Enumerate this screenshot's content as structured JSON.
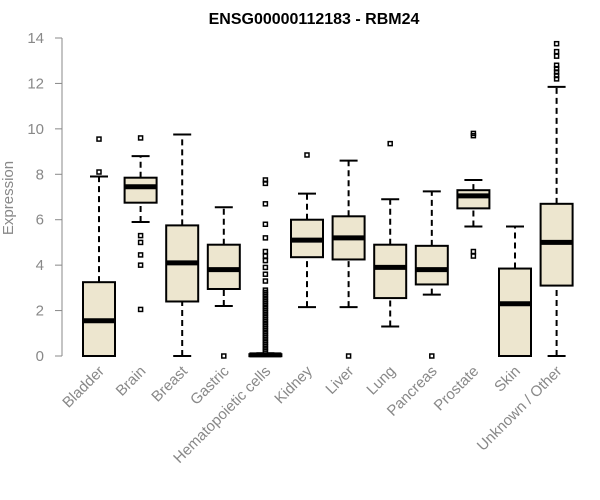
{
  "chart_data": {
    "type": "boxplot",
    "title": "ENSG00000112183 - RBM24",
    "xlabel": "",
    "ylabel": "Expression",
    "ylim": [
      0,
      14
    ],
    "yticks": [
      0,
      2,
      4,
      6,
      8,
      10,
      12,
      14
    ],
    "colors": {
      "box_fill": "#ede6cf",
      "stroke": "#000000",
      "axis": "#888888"
    },
    "categories": [
      "Bladder",
      "Brain",
      "Breast",
      "Gastric",
      "Hematopoietic cells",
      "Kidney",
      "Liver",
      "Lung",
      "Pancreas",
      "Prostate",
      "Skin",
      "Unknown / Other"
    ],
    "boxes": [
      {
        "name": "Bladder",
        "whisker_low": 0,
        "q1": 0,
        "median": 1.55,
        "q3": 3.25,
        "whisker_high": 7.9,
        "outliers": [
          8.1,
          9.55
        ]
      },
      {
        "name": "Brain",
        "whisker_low": 5.9,
        "q1": 6.75,
        "median": 7.45,
        "q3": 7.85,
        "whisker_high": 8.8,
        "outliers": [
          2.05,
          4.0,
          4.45,
          5.0,
          5.3,
          9.6
        ]
      },
      {
        "name": "Breast",
        "whisker_low": 0,
        "q1": 2.4,
        "median": 4.1,
        "q3": 5.75,
        "whisker_high": 9.75,
        "outliers": []
      },
      {
        "name": "Gastric",
        "whisker_low": 2.2,
        "q1": 2.95,
        "median": 3.8,
        "q3": 4.9,
        "whisker_high": 6.55,
        "outliers": [
          0.0
        ]
      },
      {
        "name": "Hematopoietic cells",
        "whisker_low": 0,
        "q1": 0,
        "median": 0.05,
        "q3": 0.08,
        "whisker_high": 0.12,
        "outliers": [
          0.2,
          0.3,
          0.4,
          0.5,
          0.6,
          0.7,
          0.8,
          0.9,
          1.0,
          1.1,
          1.2,
          1.3,
          1.4,
          1.5,
          1.6,
          1.7,
          1.8,
          1.9,
          2.0,
          2.1,
          2.2,
          2.3,
          2.4,
          2.5,
          2.6,
          2.7,
          2.8,
          2.9,
          3.3,
          3.6,
          3.9,
          4.2,
          4.4,
          4.6,
          5.2,
          5.8,
          6.7,
          7.6,
          7.75
        ]
      },
      {
        "name": "Kidney",
        "whisker_low": 2.15,
        "q1": 4.35,
        "median": 5.1,
        "q3": 6.0,
        "whisker_high": 7.15,
        "outliers": [
          8.85
        ]
      },
      {
        "name": "Liver",
        "whisker_low": 2.15,
        "q1": 4.25,
        "median": 5.2,
        "q3": 6.15,
        "whisker_high": 8.6,
        "outliers": [
          0.0
        ]
      },
      {
        "name": "Lung",
        "whisker_low": 1.3,
        "q1": 2.55,
        "median": 3.9,
        "q3": 4.9,
        "whisker_high": 6.9,
        "outliers": [
          9.35
        ]
      },
      {
        "name": "Pancreas",
        "whisker_low": 2.7,
        "q1": 3.15,
        "median": 3.8,
        "q3": 4.85,
        "whisker_high": 7.25,
        "outliers": [
          0.0
        ]
      },
      {
        "name": "Prostate",
        "whisker_low": 5.7,
        "q1": 6.5,
        "median": 7.05,
        "q3": 7.3,
        "whisker_high": 7.75,
        "outliers": [
          4.4,
          4.6,
          9.7,
          9.8
        ]
      },
      {
        "name": "Skin",
        "whisker_low": 0,
        "q1": 0,
        "median": 2.3,
        "q3": 3.85,
        "whisker_high": 5.7,
        "outliers": []
      },
      {
        "name": "Unknown / Other",
        "whisker_low": 0,
        "q1": 3.1,
        "median": 5.0,
        "q3": 6.7,
        "whisker_high": 11.85,
        "outliers": [
          12.2,
          12.35,
          12.5,
          12.65,
          12.8,
          13.2,
          13.4,
          13.75
        ]
      }
    ]
  }
}
